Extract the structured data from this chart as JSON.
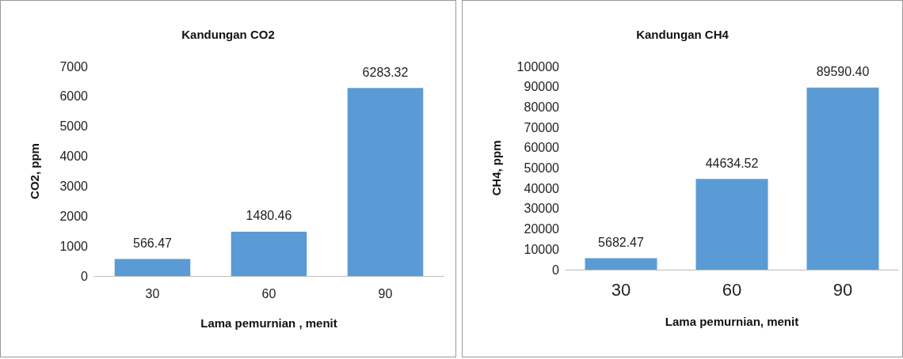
{
  "chart_data": [
    {
      "type": "bar",
      "title": "Kandungan CO2",
      "xlabel": "Lama pemurnian , menit",
      "ylabel": "CO2, ppm",
      "categories": [
        "30",
        "60",
        "90"
      ],
      "series": [
        {
          "color": "#5b9bd5",
          "values": [
            566.47,
            1480.46,
            6283.32
          ],
          "value_labels": [
            "566.47",
            "1480.46",
            "6283.32"
          ]
        }
      ],
      "ylim": [
        0,
        7000
      ],
      "yticks": [
        0,
        1000,
        2000,
        3000,
        4000,
        5000,
        6000,
        7000
      ],
      "grid": false
    },
    {
      "type": "bar",
      "title": "Kandungan CH4",
      "xlabel": "Lama pemurnian, menit",
      "ylabel": "CH4, ppm",
      "categories": [
        "30",
        "60",
        "90"
      ],
      "series": [
        {
          "color": "#5b9bd5",
          "values": [
            5682.47,
            44634.52,
            89590.4
          ],
          "value_labels": [
            "5682.47",
            "44634.52",
            "89590.40"
          ]
        }
      ],
      "ylim": [
        0,
        100000
      ],
      "yticks": [
        0,
        10000,
        20000,
        30000,
        40000,
        50000,
        60000,
        70000,
        80000,
        90000,
        100000
      ],
      "grid": false
    }
  ]
}
